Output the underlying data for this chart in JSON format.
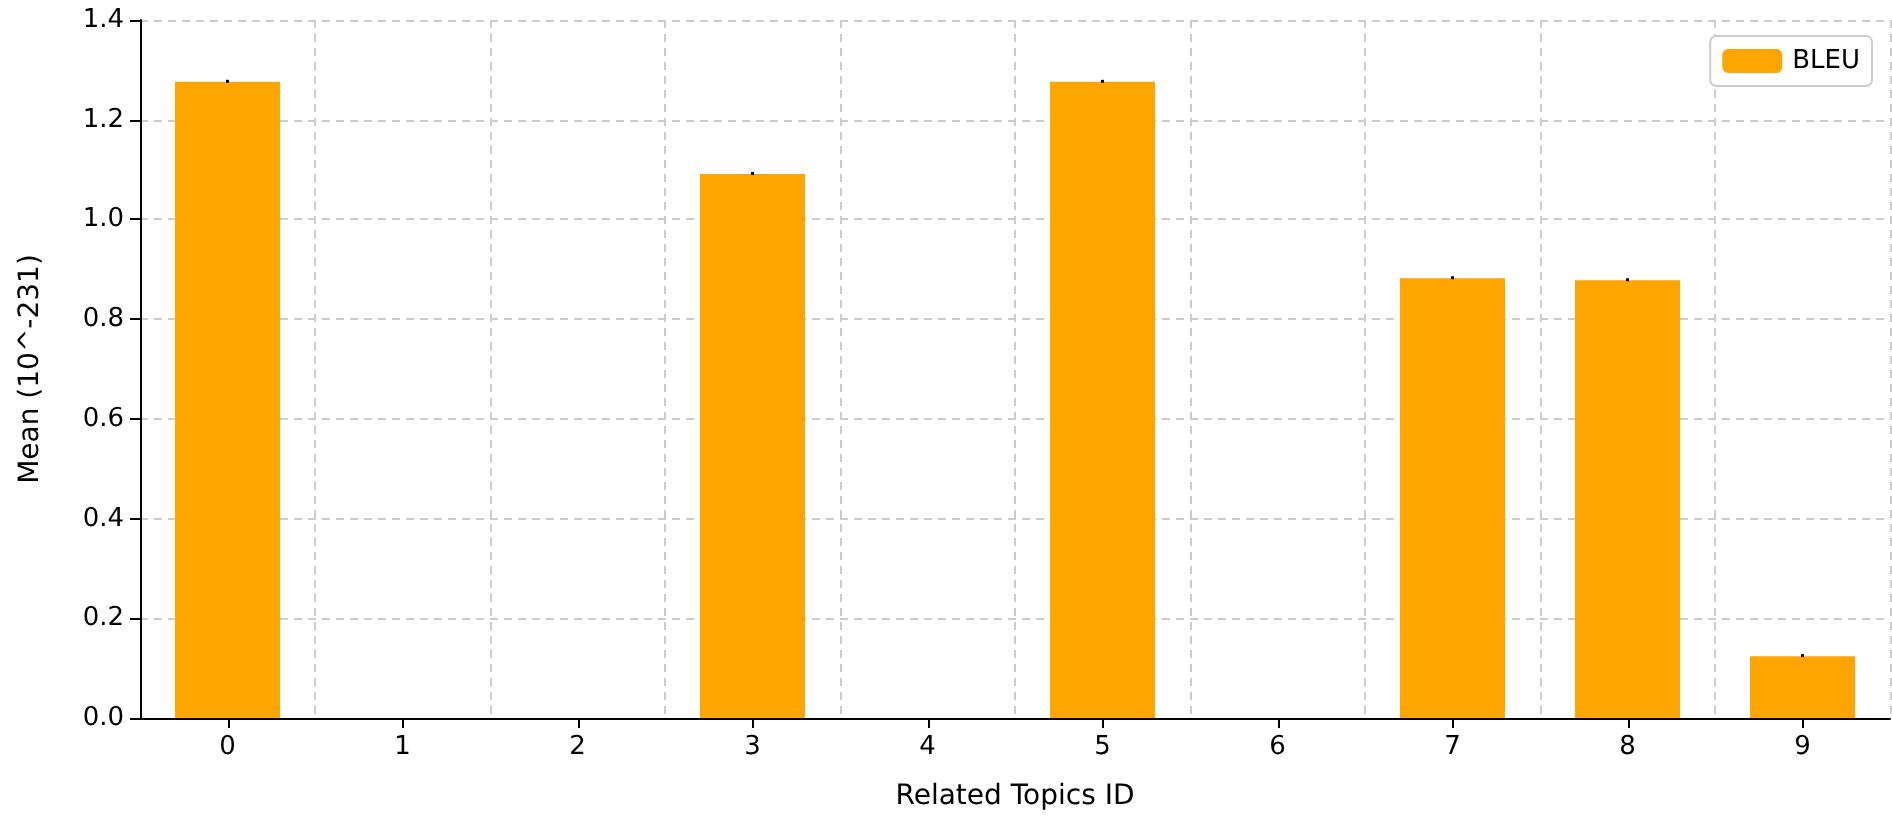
{
  "chart_data": {
    "type": "bar",
    "xlabel": "Related Topics ID",
    "ylabel": "Mean (10^-231)",
    "categories": [
      "0",
      "1",
      "2",
      "3",
      "4",
      "5",
      "6",
      "7",
      "8",
      "9"
    ],
    "series": [
      {
        "name": "BLEU",
        "color": "#ffa500",
        "values": [
          1.276,
          0,
          0,
          1.091,
          0,
          1.276,
          0,
          0.882,
          0.878,
          0.124
        ],
        "errors": [
          0.002,
          null,
          null,
          0.002,
          null,
          0.002,
          null,
          0.002,
          0.002,
          0.002
        ]
      }
    ],
    "ylim": [
      0,
      1.4
    ],
    "yticks": [
      {
        "value": 0,
        "label": "0.0"
      },
      {
        "value": 0.2,
        "label": "0.2"
      },
      {
        "value": 0.4,
        "label": "0.4"
      },
      {
        "value": 0.6,
        "label": "0.6"
      },
      {
        "value": 0.8,
        "label": "0.8"
      },
      {
        "value": 1.0,
        "label": "1.0"
      },
      {
        "value": 1.2,
        "label": "1.2"
      },
      {
        "value": 1.4,
        "label": "1.4"
      }
    ],
    "grid": true,
    "legend": "top right"
  }
}
